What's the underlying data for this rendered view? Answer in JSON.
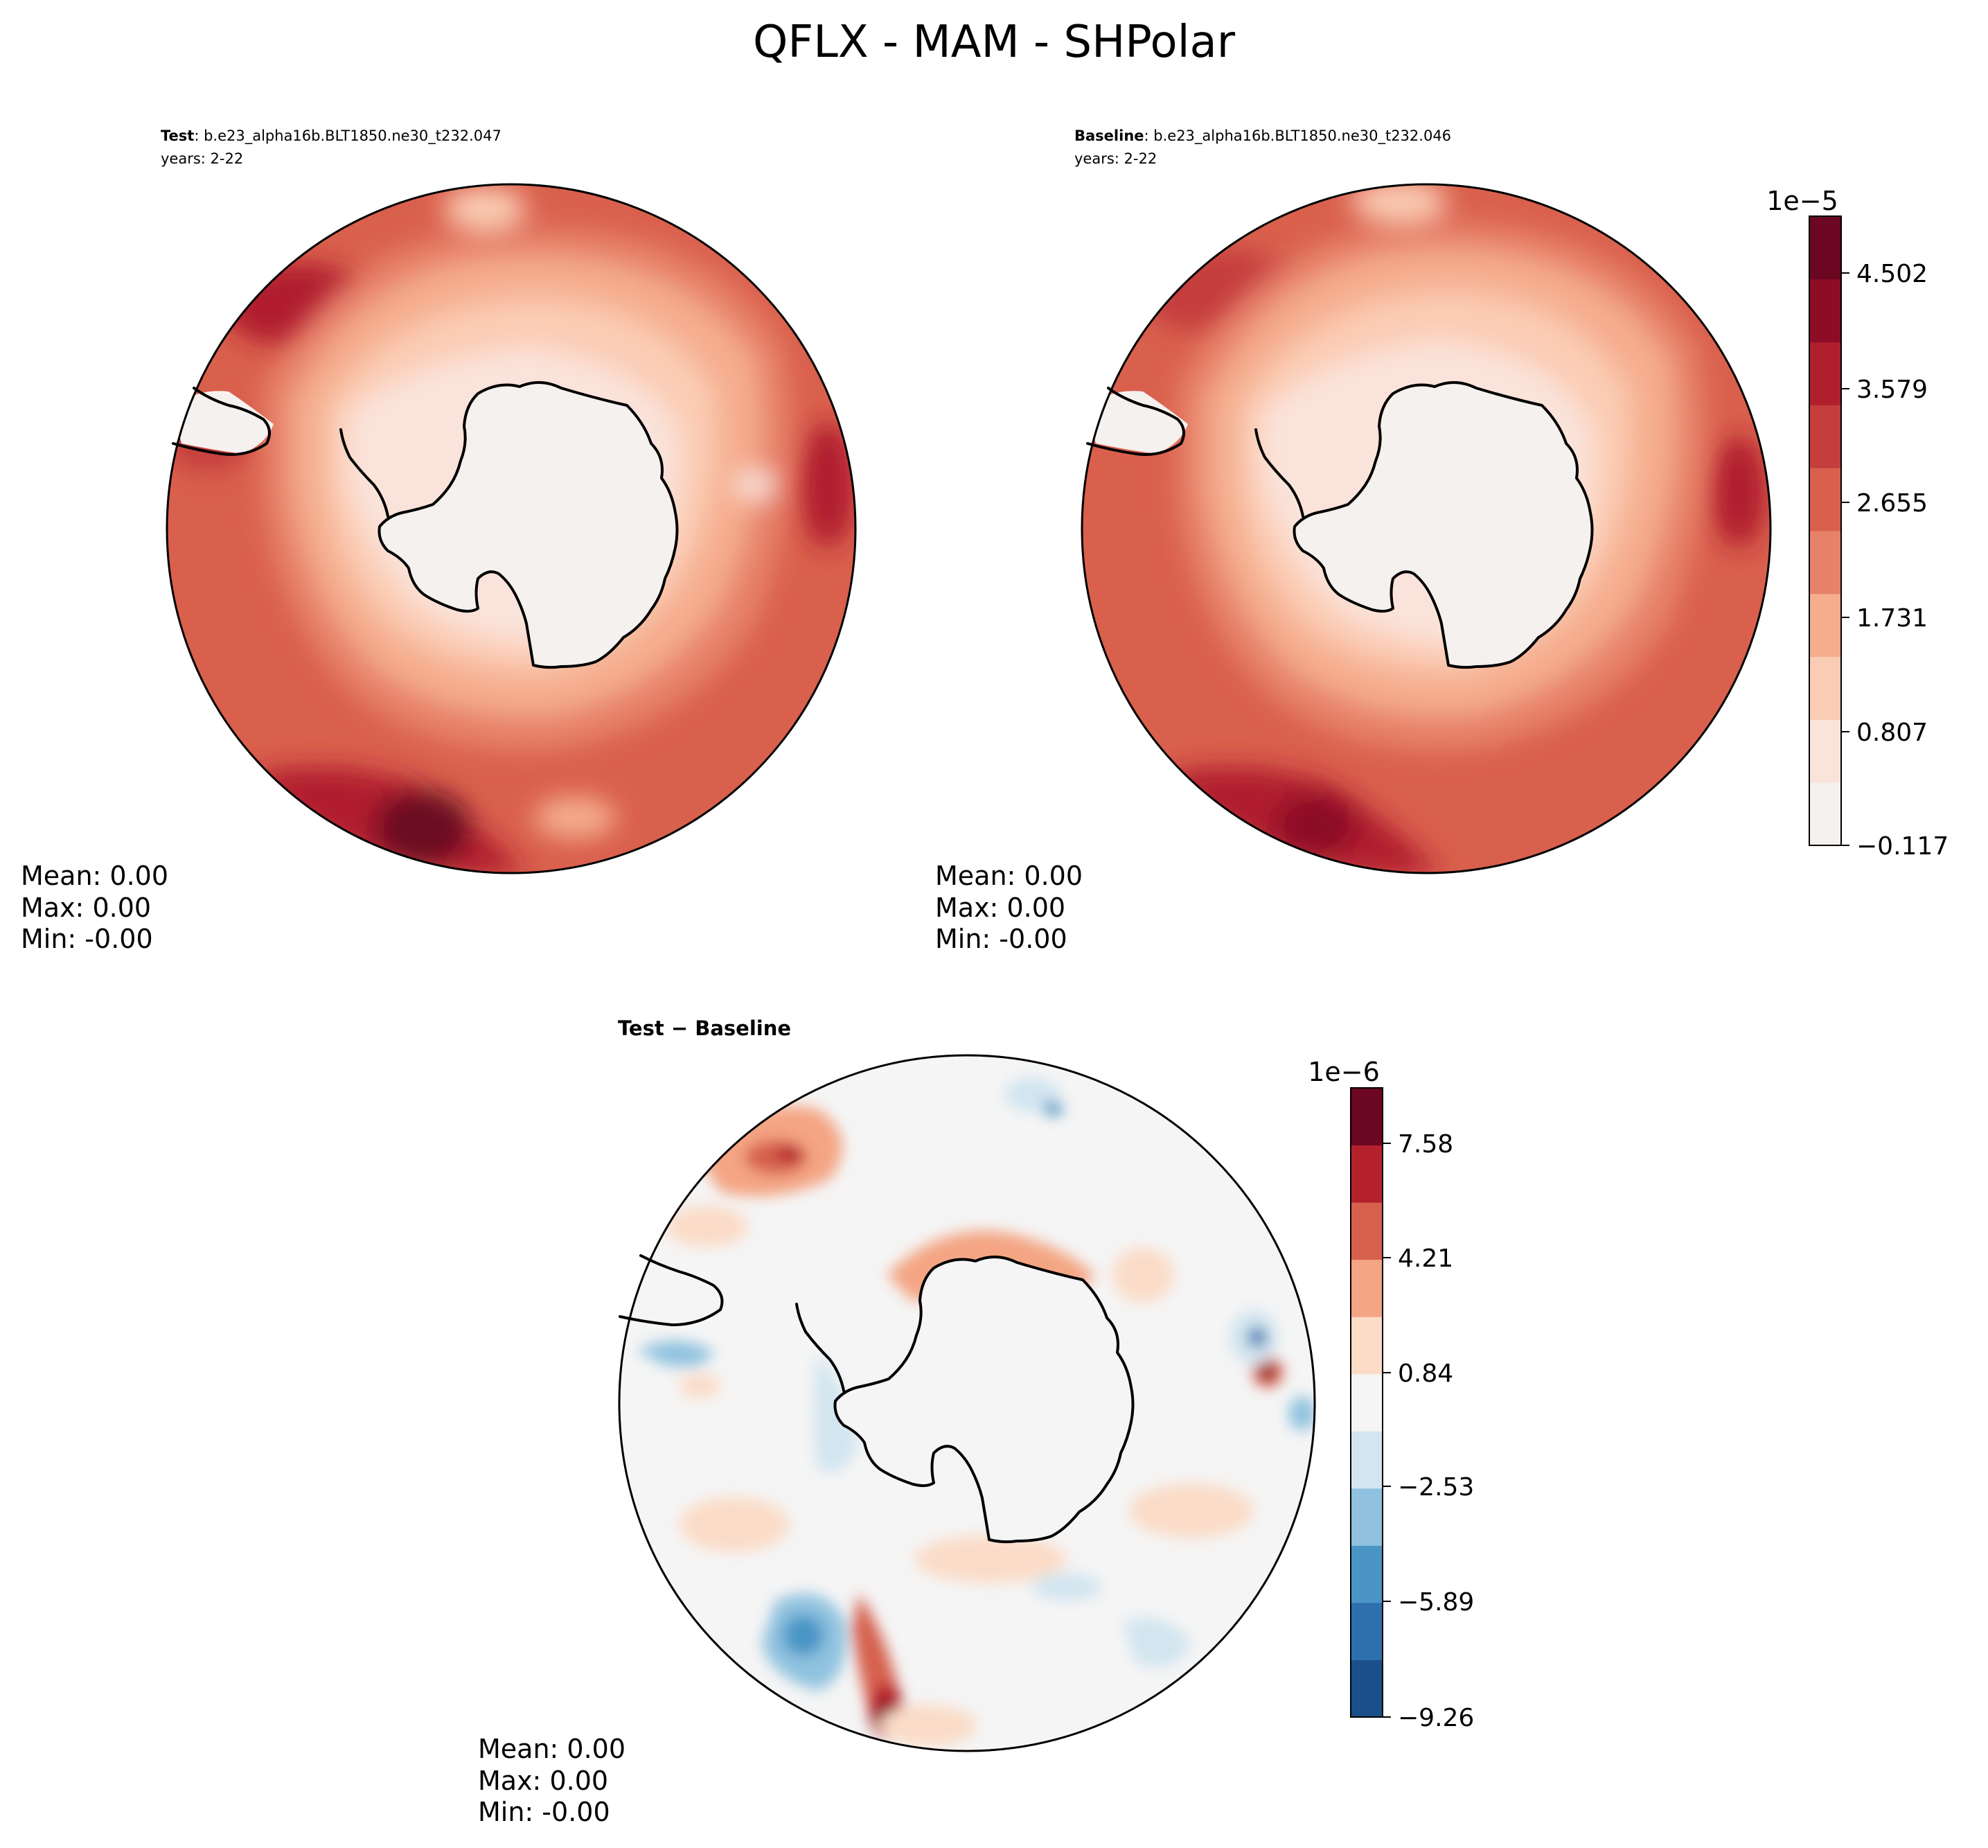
{
  "title": "QFLX - MAM - SHPolar",
  "colormaps": {
    "abs": [
      "#f5f1ee",
      "#fae3da",
      "#fbccb4",
      "#f5ad8e",
      "#e7826a",
      "#d9604d",
      "#c53e3d",
      "#b01f2d",
      "#8c0d25",
      "#6b0720"
    ],
    "diff": [
      "#1a4f8a",
      "#2e6fae",
      "#4a95c6",
      "#90c2df",
      "#d2e5f0",
      "#f5f5f5",
      "#fbdcc8",
      "#f4a583",
      "#d6604d",
      "#b5202d",
      "#6b0720"
    ]
  },
  "panels": [
    {
      "id": "test",
      "label_bold": "Test",
      "label_rest": ": b.e23_alpha16b.BLT1850.ne30_t232.047",
      "years": "years: 2-22",
      "stats": [
        "Mean:  0.00",
        "Max:  0.00",
        "Min: -0.00"
      ]
    },
    {
      "id": "baseline",
      "label_bold": "Baseline",
      "label_rest": ": b.e23_alpha16b.BLT1850.ne30_t232.046",
      "years": "years: 2-22",
      "stats": [
        "Mean:  0.00",
        "Max:  0.00",
        "Min: -0.00"
      ]
    },
    {
      "id": "diff",
      "label_bold": "Test − Baseline",
      "stats": [
        "Mean:  0.00",
        "Max:  0.00",
        "Min: -0.00"
      ]
    }
  ],
  "colorbars": [
    {
      "id": "abs",
      "offset": "1e−5",
      "ticks": [
        "4.502",
        "3.579",
        "2.655",
        "1.731",
        "0.807",
        "−0.117"
      ],
      "min": -0.117,
      "max": 5.0
    },
    {
      "id": "diff",
      "offset": "1e−6",
      "ticks": [
        "7.58",
        "4.21",
        "0.84",
        "−2.53",
        "−5.89",
        "−9.26"
      ],
      "min": -9.26,
      "max": 9.0
    }
  ]
}
